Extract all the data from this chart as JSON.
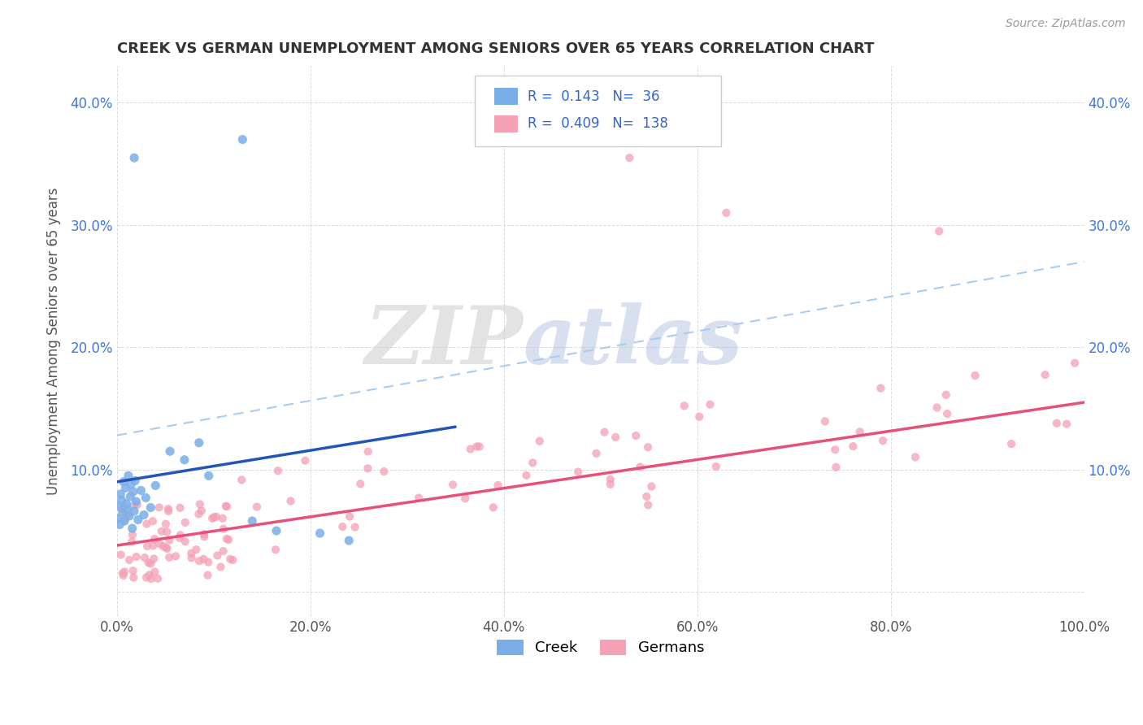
{
  "title": "CREEK VS GERMAN UNEMPLOYMENT AMONG SENIORS OVER 65 YEARS CORRELATION CHART",
  "source": "Source: ZipAtlas.com",
  "ylabel": "Unemployment Among Seniors over 65 years",
  "xlim": [
    0,
    1.0
  ],
  "ylim": [
    -0.02,
    0.43
  ],
  "creek_color": "#7aaee8",
  "german_color": "#f4a0b5",
  "creek_line_color": "#2255bb",
  "german_line_color": "#e8507a",
  "dash_line_color": "#aaccee",
  "creek_R": 0.143,
  "creek_N": 36,
  "german_R": 0.409,
  "german_N": 138,
  "background_color": "#ffffff",
  "grid_color": "#cccccc"
}
